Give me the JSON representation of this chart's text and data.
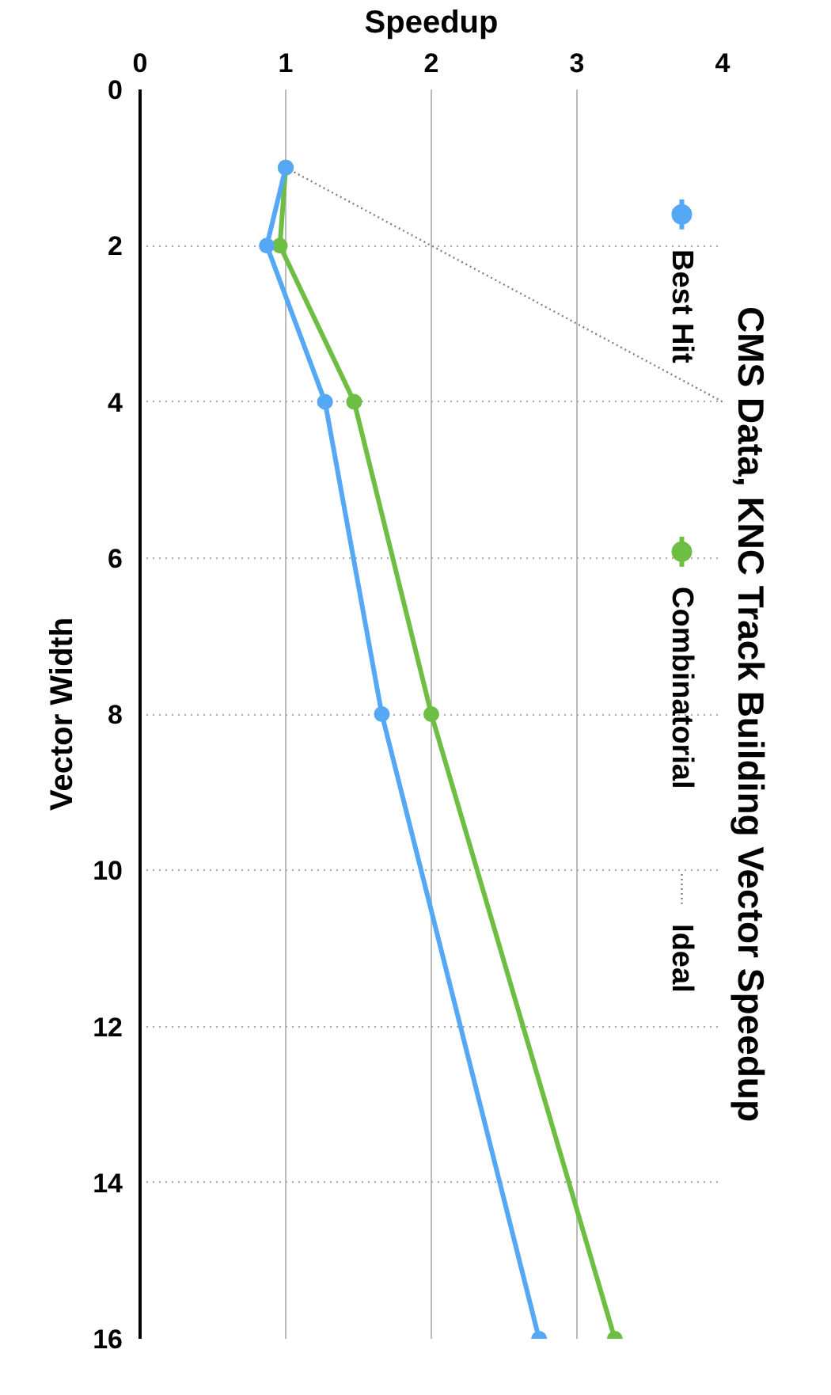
{
  "chart_data": {
    "type": "line",
    "title": "CMS Data, KNC Track Building Vector Speedup",
    "xlabel": "Speedup",
    "ylabel": "Vector Width",
    "xlim": [
      0,
      4
    ],
    "xticks": [
      0,
      1,
      2,
      3,
      4
    ],
    "ylim": [
      16,
      0
    ],
    "yticks": [
      0,
      2,
      4,
      6,
      8,
      10,
      12,
      14,
      16
    ],
    "grid": true,
    "legend": "right",
    "marker": "circle",
    "series": [
      {
        "name": "Best Hit",
        "color": "#55a8f5",
        "x": [
          1,
          0.87,
          1.27,
          1.66,
          2.74
        ],
        "values": [
          1,
          2,
          4,
          8,
          16
        ]
      },
      {
        "name": "Combinatorial",
        "color": "#6fbe44",
        "x": [
          1,
          0.96,
          1.47,
          2.0,
          3.26
        ],
        "values": [
          1,
          2,
          4,
          8,
          16
        ]
      },
      {
        "name": "Ideal",
        "color": "#808080",
        "x": [
          1,
          4
        ],
        "values": [
          1,
          4
        ],
        "marker": "none",
        "line_style": "dotted"
      }
    ]
  }
}
